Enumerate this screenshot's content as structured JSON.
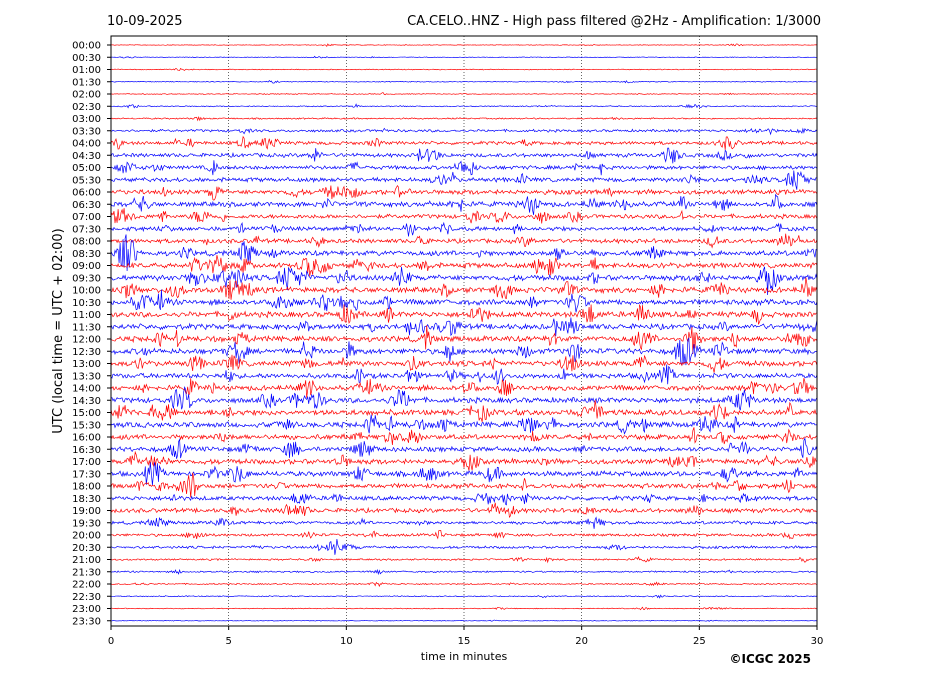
{
  "header": {
    "date": "10-09-2025",
    "title": "CA.CELO..HNZ - High pass filtered @2Hz - Amplification: 1/3000"
  },
  "footer": {
    "copyright": "©ICGC 2025"
  },
  "chart_data": {
    "type": "line",
    "title": "CA.CELO..HNZ - High pass filtered @2Hz - Amplification: 1/3000",
    "xlabel": "time in minutes",
    "ylabel": "UTC (local time = UTC + 02:00)",
    "xlim": [
      0,
      30
    ],
    "x_ticks": [
      0,
      5,
      10,
      15,
      20,
      25,
      30
    ],
    "x_tick_labels": [
      "0",
      "5",
      "10",
      "15",
      "20",
      "25",
      "30"
    ],
    "vertical_grid_minutes": [
      5,
      10,
      15,
      20,
      25
    ],
    "grid": "vertical dotted",
    "trace_colors": [
      "#ff0000",
      "#0000ff"
    ],
    "rows": [
      "00:00",
      "00:30",
      "01:00",
      "01:30",
      "02:00",
      "02:30",
      "03:00",
      "03:30",
      "04:00",
      "04:30",
      "05:00",
      "05:30",
      "06:00",
      "06:30",
      "07:00",
      "07:30",
      "08:00",
      "08:30",
      "09:00",
      "09:30",
      "10:00",
      "10:30",
      "11:00",
      "11:30",
      "12:00",
      "12:30",
      "13:00",
      "13:30",
      "14:00",
      "14:30",
      "15:00",
      "15:30",
      "16:00",
      "16:30",
      "17:00",
      "17:30",
      "18:00",
      "18:30",
      "19:00",
      "19:30",
      "20:00",
      "20:30",
      "21:00",
      "21:30",
      "22:00",
      "22:30",
      "23:00",
      "23:30"
    ],
    "row_color_sequence": [
      "red",
      "blue",
      "red",
      "blue",
      "red",
      "blue",
      "red",
      "blue",
      "red",
      "blue",
      "blue",
      "blue",
      "red",
      "blue",
      "red",
      "blue",
      "red",
      "blue",
      "red",
      "blue",
      "red",
      "blue",
      "red",
      "blue",
      "red",
      "blue",
      "red",
      "blue",
      "red",
      "blue",
      "red",
      "blue",
      "red",
      "blue",
      "red",
      "blue",
      "red",
      "blue",
      "red",
      "blue",
      "red",
      "blue",
      "red",
      "blue",
      "red",
      "blue",
      "red",
      "blue"
    ],
    "row_noise_level": [
      0.3,
      0.3,
      0.4,
      0.4,
      0.4,
      0.5,
      0.7,
      1.2,
      1.6,
      1.8,
      1.8,
      2.0,
      2.2,
      2.3,
      2.0,
      2.0,
      2.0,
      2.4,
      2.4,
      2.6,
      2.6,
      2.6,
      2.6,
      2.6,
      2.6,
      2.6,
      2.5,
      2.4,
      2.4,
      2.5,
      2.6,
      2.6,
      2.4,
      2.3,
      2.4,
      2.4,
      2.2,
      2.0,
      2.0,
      1.5,
      1.3,
      1.2,
      0.8,
      0.8,
      0.6,
      0.5,
      0.4,
      0.3
    ]
  }
}
